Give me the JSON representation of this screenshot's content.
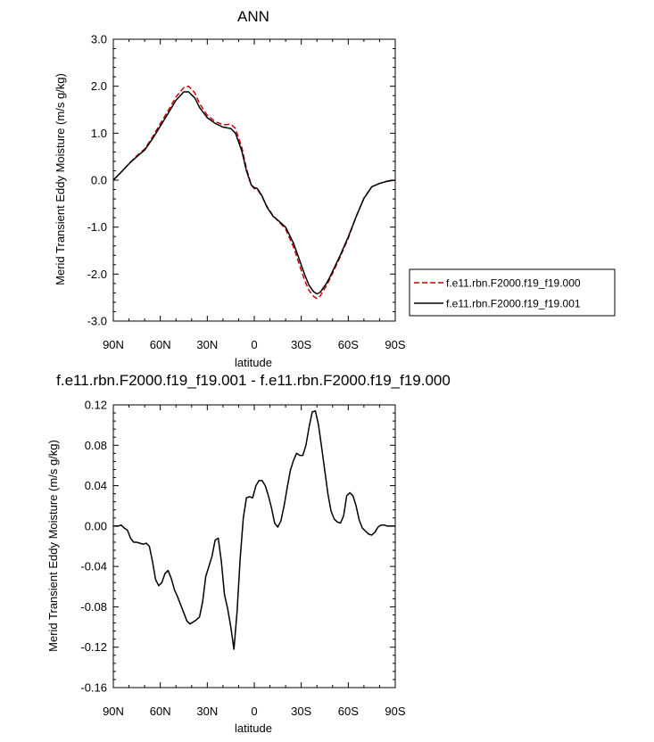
{
  "chart_data": [
    {
      "type": "line",
      "title": "ANN",
      "xlabel": "latitude",
      "ylabel": "Merid Transient Eddy Moisture (m/s g/kg)",
      "xlim": [
        90,
        -90
      ],
      "ylim": [
        -3.0,
        3.0
      ],
      "xticks": [
        90,
        60,
        30,
        0,
        -30,
        -60,
        -90
      ],
      "xtick_labels": [
        "90N",
        "60N",
        "30N",
        "0",
        "30S",
        "60S",
        "90S"
      ],
      "yticks": [
        3.0,
        2.0,
        1.0,
        0.0,
        -1.0,
        -2.0,
        -3.0
      ],
      "ytick_labels": [
        "3.0",
        "2.0",
        "1.0",
        "0.0",
        "-1.0",
        "-2.0",
        "-3.0"
      ],
      "legend_position": "right",
      "series": [
        {
          "name": "f.e11.rbn.F2000.f19_f19.000",
          "color": "#cc0000",
          "style": "dashed",
          "x": [
            90,
            85,
            80,
            75,
            70,
            65,
            60,
            55,
            50,
            45,
            42,
            38,
            35,
            30,
            25,
            20,
            15,
            12,
            8,
            5,
            2,
            0,
            -2,
            -5,
            -8,
            -12,
            -15,
            -20,
            -25,
            -28,
            -32,
            -35,
            -38,
            -40,
            -42,
            -44,
            -46,
            -48,
            -50,
            -55,
            -60,
            -65,
            -70,
            -75,
            -80,
            -85,
            -90
          ],
          "y": [
            0.0,
            0.17,
            0.35,
            0.52,
            0.66,
            0.92,
            1.2,
            1.48,
            1.77,
            1.97,
            2.0,
            1.86,
            1.63,
            1.38,
            1.25,
            1.18,
            1.19,
            1.1,
            0.7,
            0.25,
            -0.1,
            -0.18,
            -0.2,
            -0.35,
            -0.55,
            -0.76,
            -0.86,
            -1.04,
            -1.42,
            -1.72,
            -2.12,
            -2.35,
            -2.48,
            -2.52,
            -2.47,
            -2.36,
            -2.25,
            -2.12,
            -1.98,
            -1.62,
            -1.24,
            -0.78,
            -0.38,
            -0.14,
            -0.07,
            -0.02,
            0.0
          ]
        },
        {
          "name": "f.e11.rbn.F2000.f19_f19.001",
          "color": "#000000",
          "style": "solid",
          "x": [
            90,
            85,
            80,
            75,
            70,
            65,
            60,
            55,
            50,
            45,
            42,
            38,
            35,
            30,
            25,
            20,
            15,
            12,
            8,
            5,
            2,
            0,
            -2,
            -5,
            -8,
            -12,
            -15,
            -20,
            -25,
            -28,
            -32,
            -35,
            -38,
            -40,
            -42,
            -44,
            -46,
            -48,
            -50,
            -55,
            -60,
            -65,
            -70,
            -75,
            -80,
            -85,
            -90
          ],
          "y": [
            0.0,
            0.17,
            0.35,
            0.5,
            0.64,
            0.88,
            1.15,
            1.42,
            1.7,
            1.88,
            1.88,
            1.75,
            1.55,
            1.33,
            1.21,
            1.13,
            1.1,
            1.0,
            0.62,
            0.2,
            -0.1,
            -0.16,
            -0.18,
            -0.34,
            -0.57,
            -0.77,
            -0.85,
            -1.0,
            -1.34,
            -1.62,
            -2.0,
            -2.24,
            -2.38,
            -2.42,
            -2.39,
            -2.3,
            -2.2,
            -2.08,
            -1.94,
            -1.59,
            -1.21,
            -0.78,
            -0.39,
            -0.14,
            -0.07,
            -0.02,
            0.0
          ]
        }
      ]
    },
    {
      "type": "line",
      "title": "f.e11.rbn.F2000.f19_f19.001 - f.e11.rbn.F2000.f19_f19.000",
      "xlabel": "latitude",
      "ylabel": "Merid Transient Eddy Moisture (m/s g/kg)",
      "xlim": [
        90,
        -90
      ],
      "ylim": [
        -0.16,
        0.12
      ],
      "xticks": [
        90,
        60,
        30,
        0,
        -30,
        -60,
        -90
      ],
      "xtick_labels": [
        "90N",
        "60N",
        "30N",
        "0",
        "30S",
        "60S",
        "90S"
      ],
      "yticks": [
        0.12,
        0.08,
        0.04,
        0.0,
        -0.04,
        -0.08,
        -0.12,
        -0.16
      ],
      "ytick_labels": [
        "0.12",
        "0.08",
        "0.04",
        "0.00",
        "-0.04",
        "-0.08",
        "-0.12",
        "-0.16"
      ],
      "series": [
        {
          "color": "#000000",
          "style": "solid",
          "x": [
            90,
            87,
            85,
            83,
            81,
            79,
            77,
            75,
            73,
            71,
            69,
            67,
            65,
            63,
            61,
            59,
            57,
            55,
            53,
            51,
            49,
            47,
            45,
            43,
            41,
            39,
            37,
            35,
            33,
            31,
            29,
            27,
            25,
            23,
            21,
            19,
            17,
            15,
            13,
            11,
            9,
            7,
            5,
            3,
            1,
            -1,
            -3,
            -5,
            -7,
            -9,
            -11,
            -13,
            -15,
            -17,
            -19,
            -21,
            -23,
            -25,
            -27,
            -29,
            -31,
            -33,
            -35,
            -37,
            -39,
            -41,
            -43,
            -45,
            -47,
            -49,
            -51,
            -53,
            -55,
            -57,
            -59,
            -61,
            -63,
            -65,
            -67,
            -69,
            -71,
            -73,
            -75,
            -77,
            -79,
            -81,
            -83,
            -85,
            -87,
            -90
          ],
          "y": [
            0.0,
            0.0,
            0.001,
            -0.002,
            -0.004,
            -0.012,
            -0.016,
            -0.016,
            -0.017,
            -0.018,
            -0.017,
            -0.02,
            -0.035,
            -0.053,
            -0.059,
            -0.056,
            -0.047,
            -0.044,
            -0.052,
            -0.063,
            -0.07,
            -0.078,
            -0.086,
            -0.094,
            -0.097,
            -0.095,
            -0.093,
            -0.09,
            -0.075,
            -0.05,
            -0.04,
            -0.03,
            -0.014,
            -0.012,
            -0.035,
            -0.068,
            -0.082,
            -0.1,
            -0.122,
            -0.085,
            -0.032,
            0.008,
            0.028,
            0.029,
            0.028,
            0.04,
            0.045,
            0.045,
            0.04,
            0.03,
            0.018,
            0.003,
            -0.001,
            0.005,
            0.02,
            0.038,
            0.055,
            0.065,
            0.072,
            0.07,
            0.07,
            0.08,
            0.098,
            0.113,
            0.114,
            0.1,
            0.078,
            0.055,
            0.032,
            0.015,
            0.007,
            0.004,
            0.003,
            0.01,
            0.03,
            0.033,
            0.03,
            0.02,
            0.006,
            -0.002,
            -0.005,
            -0.008,
            -0.009,
            -0.006,
            -0.001,
            0.001,
            0.001,
            0.0,
            0.0,
            0.0
          ]
        }
      ]
    }
  ]
}
